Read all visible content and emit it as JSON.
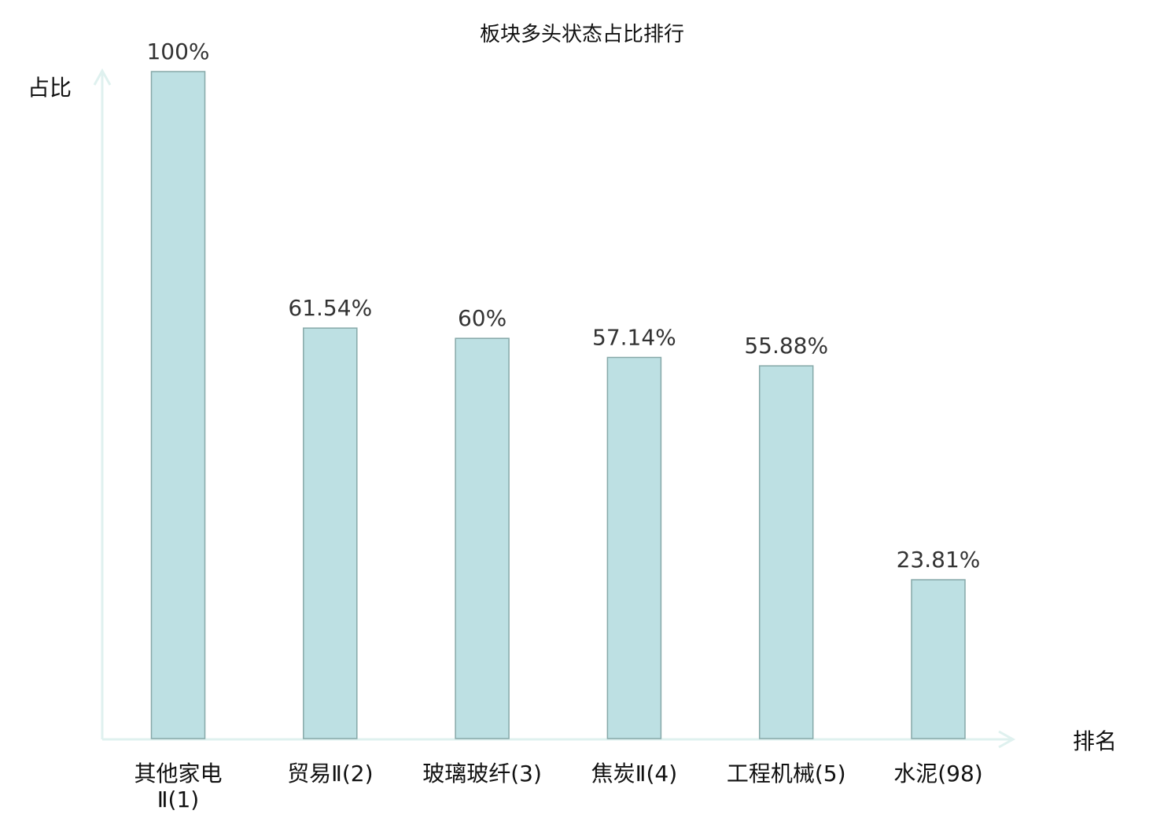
{
  "chart_data": {
    "type": "bar",
    "title": "板块多头状态占比排行",
    "xlabel": "排名",
    "ylabel": "占比",
    "ylim": [
      0,
      100
    ],
    "grid": false,
    "categories": [
      {
        "lines": [
          "其他家电",
          "Ⅱ(1)"
        ],
        "highlight": false
      },
      {
        "lines": [
          "贸易Ⅱ(2)"
        ],
        "highlight": false
      },
      {
        "lines": [
          "玻璃玻纤(3)"
        ],
        "highlight": false
      },
      {
        "lines": [
          "焦炭Ⅱ(4)"
        ],
        "highlight": false
      },
      {
        "lines": [
          "工程机械(5)"
        ],
        "highlight": false
      },
      {
        "lines": [
          "水泥(98)"
        ],
        "highlight": true
      }
    ],
    "values": [
      100,
      61.54,
      60,
      57.14,
      55.88,
      23.81
    ],
    "value_labels": [
      "100%",
      "61.54%",
      "60%",
      "57.14%",
      "55.88%",
      "23.81%"
    ],
    "colors": {
      "bar_fill": "#bde0e3",
      "bar_stroke": "#86a8a8",
      "axis": "#dff1ef",
      "highlight": "#e0141e",
      "normal": "#111111"
    }
  }
}
